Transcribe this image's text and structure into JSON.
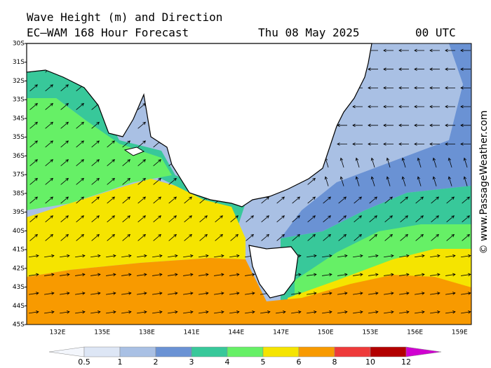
{
  "header": {
    "title": "Wave Height (m) and Direction",
    "model": "EC—WAM 168 Hour Forecast",
    "date": "Thu 08 May 2025",
    "time": "00 UTC"
  },
  "lat_labels": [
    "30S",
    "31S",
    "32S",
    "33S",
    "34S",
    "35S",
    "36S",
    "37S",
    "38S",
    "39S",
    "40S",
    "41S",
    "42S",
    "43S",
    "44S",
    "45S"
  ],
  "lon_labels": [
    "132E",
    "135E",
    "138E",
    "141E",
    "144E",
    "147E",
    "150E",
    "153E",
    "156E",
    "159E"
  ],
  "legend": {
    "labels": [
      0.5,
      1,
      2,
      3,
      4,
      5,
      6,
      8,
      10,
      12
    ],
    "colors": [
      "#dde6f5",
      "#a9c0e4",
      "#6a92d4",
      "#38c89a",
      "#66f066",
      "#f5e400",
      "#f89a00",
      "#ee3a3a",
      "#b30000"
    ]
  },
  "watermark": "© www.PassageWeather.com"
}
